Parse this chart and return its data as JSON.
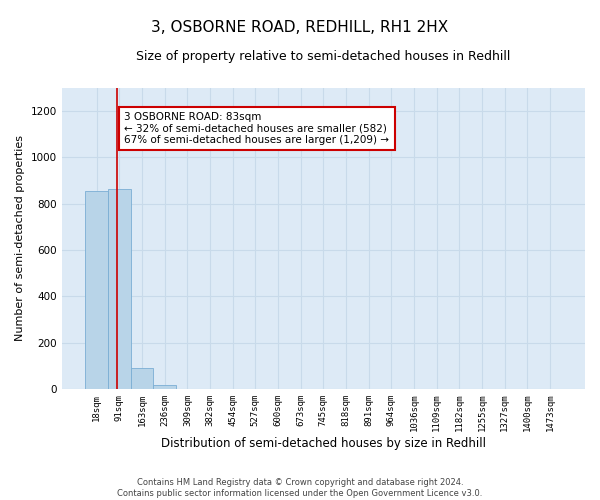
{
  "title": "3, OSBORNE ROAD, REDHILL, RH1 2HX",
  "subtitle": "Size of property relative to semi-detached houses in Redhill",
  "xlabel": "Distribution of semi-detached houses by size in Redhill",
  "ylabel": "Number of semi-detached properties",
  "footer_line1": "Contains HM Land Registry data © Crown copyright and database right 2024.",
  "footer_line2": "Contains public sector information licensed under the Open Government Licence v3.0.",
  "bar_labels": [
    "18sqm",
    "91sqm",
    "163sqm",
    "236sqm",
    "309sqm",
    "382sqm",
    "454sqm",
    "527sqm",
    "600sqm",
    "673sqm",
    "745sqm",
    "818sqm",
    "891sqm",
    "964sqm",
    "1036sqm",
    "1109sqm",
    "1182sqm",
    "1255sqm",
    "1327sqm",
    "1400sqm",
    "1473sqm"
  ],
  "bar_values": [
    855,
    865,
    90,
    15,
    0,
    0,
    0,
    0,
    0,
    0,
    0,
    0,
    0,
    0,
    0,
    0,
    0,
    0,
    0,
    0,
    0
  ],
  "bar_color": "#b8d4e8",
  "bar_edge_color": "#7aaed4",
  "ylim": [
    0,
    1300
  ],
  "yticks": [
    0,
    200,
    400,
    600,
    800,
    1000,
    1200
  ],
  "property_label": "3 OSBORNE ROAD: 83sqm",
  "annotation_line1": "← 32% of semi-detached houses are smaller (582)",
  "annotation_line2": "67% of semi-detached houses are larger (1,209) →",
  "red_line_x": 0.9,
  "annotation_box_color": "#ffffff",
  "annotation_box_edge": "#cc0000",
  "grid_color": "#c8daea",
  "background_color": "#ddeaf6",
  "title_fontsize": 11,
  "subtitle_fontsize": 9,
  "tick_fontsize": 6.5,
  "ylabel_fontsize": 8,
  "xlabel_fontsize": 8.5,
  "annotation_fontsize": 7.5
}
